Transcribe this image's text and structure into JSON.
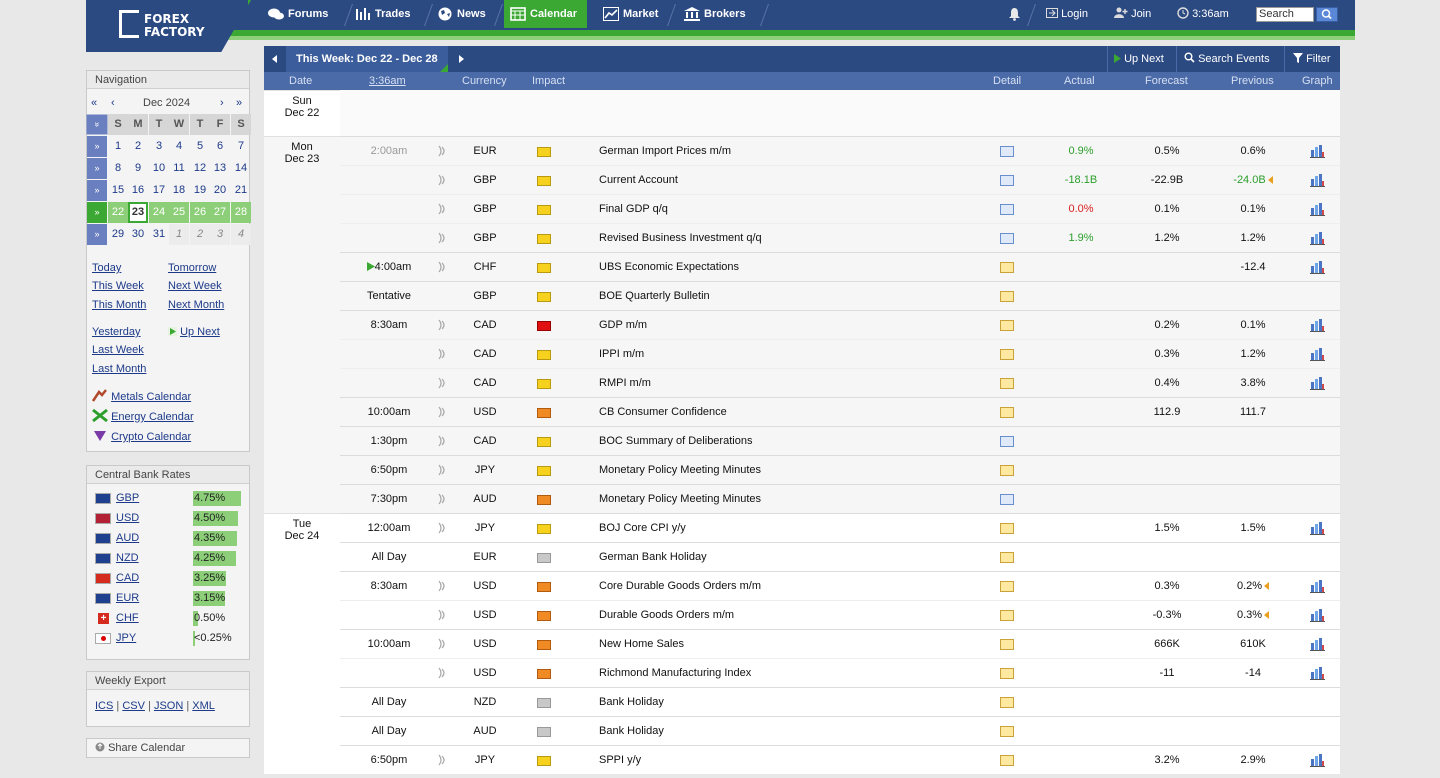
{
  "header": {
    "logo_line1": "FOREX",
    "logo_line2": "FACTORY",
    "tabs": [
      {
        "label": "Forums"
      },
      {
        "label": "Trades"
      },
      {
        "label": "News"
      },
      {
        "label": "Calendar",
        "active": true
      },
      {
        "label": "Market"
      },
      {
        "label": "Brokers"
      }
    ],
    "login": "Login",
    "join": "Join",
    "time": "3:36am",
    "search_placeholder": "Search"
  },
  "toolbar": {
    "week_label": "This Week: Dec 22 - Dec 28",
    "up_next": "Up Next",
    "search_events": "Search Events",
    "filter": "Filter"
  },
  "columns": {
    "date": "Date",
    "time": "3:36am",
    "currency": "Currency",
    "impact": "Impact",
    "detail": "Detail",
    "actual": "Actual",
    "forecast": "Forecast",
    "previous": "Previous",
    "graph": "Graph"
  },
  "sidebar": {
    "nav_title": "Navigation",
    "cal_nav": {
      "first": "«",
      "prev": "‹",
      "month": "Dec 2024",
      "next": "›",
      "last": "»"
    },
    "weekdays": [
      "S",
      "M",
      "T",
      "W",
      "T",
      "F",
      "S"
    ],
    "weeks": [
      [
        "1",
        "2",
        "3",
        "4",
        "5",
        "6",
        "7"
      ],
      [
        "8",
        "9",
        "10",
        "11",
        "12",
        "13",
        "14"
      ],
      [
        "15",
        "16",
        "17",
        "18",
        "19",
        "20",
        "21"
      ],
      [
        "22",
        "23",
        "24",
        "25",
        "26",
        "27",
        "28"
      ],
      [
        "29",
        "30",
        "31",
        "1",
        "2",
        "3",
        "4"
      ]
    ],
    "links": {
      "today": "Today",
      "tomorrow": "Tomorrow",
      "this_week": "This Week",
      "next_week": "Next Week",
      "this_month": "This Month",
      "next_month": "Next Month",
      "yesterday": "Yesterday",
      "up_next": "Up Next",
      "last_week": "Last Week",
      "last_month": "Last Month",
      "metals": "Metals Calendar",
      "energy": "Energy Calendar",
      "crypto": "Crypto Calendar"
    },
    "cbr_title": "Central Bank Rates",
    "rates": [
      {
        "code": "GBP",
        "rate": "4.75%",
        "level": 0.475
      },
      {
        "code": "USD",
        "rate": "4.50%",
        "level": 0.45
      },
      {
        "code": "AUD",
        "rate": "4.35%",
        "level": 0.435
      },
      {
        "code": "NZD",
        "rate": "4.25%",
        "level": 0.425
      },
      {
        "code": "CAD",
        "rate": "3.25%",
        "level": 0.325
      },
      {
        "code": "EUR",
        "rate": "3.15%",
        "level": 0.315
      },
      {
        "code": "CHF",
        "rate": "0.50%",
        "level": 0.05
      },
      {
        "code": "JPY",
        "rate": "<0.25%",
        "level": 0.02
      }
    ],
    "export_title": "Weekly Export",
    "exports": [
      "ICS",
      "CSV",
      "JSON",
      "XML"
    ],
    "share": "Share Calendar"
  },
  "days": [
    {
      "day": "Sun",
      "date": "Dec 22"
    },
    {
      "day": "Mon",
      "date": "Dec 23"
    },
    {
      "day": "Tue",
      "date": "Dec 24"
    }
  ],
  "events": [
    {
      "time": "2:00am",
      "cur": "EUR",
      "impact": "yellow",
      "event": "German Import Prices m/m",
      "actual": "0.9%",
      "actual_class": "pos",
      "forecast": "0.5%",
      "previous": "0.6%",
      "graph": true
    },
    {
      "time": "",
      "cur": "GBP",
      "impact": "yellow",
      "event": "Current Account",
      "actual": "-18.1B",
      "actual_class": "pos",
      "forecast": "-22.9B",
      "previous": "-24.0B",
      "previous_class": "pos",
      "prev_rev": true,
      "graph": true
    },
    {
      "time": "",
      "cur": "GBP",
      "impact": "yellow",
      "event": "Final GDP q/q",
      "actual": "0.0%",
      "actual_class": "neg",
      "forecast": "0.1%",
      "previous": "0.1%",
      "graph": true
    },
    {
      "time": "",
      "cur": "GBP",
      "impact": "yellow",
      "event": "Revised Business Investment q/q",
      "actual": "1.9%",
      "actual_class": "pos",
      "forecast": "1.2%",
      "previous": "1.2%",
      "graph": true
    },
    {
      "time": "4:00am",
      "cur": "CHF",
      "impact": "yellow",
      "event": "UBS Economic Expectations",
      "actual": "",
      "forecast": "",
      "previous": "-12.4",
      "graph": true,
      "next": true
    },
    {
      "time": "Tentative",
      "cur": "GBP",
      "impact": "yellow",
      "event": "BOE Quarterly Bulletin",
      "actual": "",
      "forecast": "",
      "previous": "",
      "graph": false
    },
    {
      "time": "8:30am",
      "cur": "CAD",
      "impact": "red",
      "event": "GDP m/m",
      "actual": "",
      "forecast": "0.2%",
      "previous": "0.1%",
      "graph": true
    },
    {
      "time": "",
      "cur": "CAD",
      "impact": "yellow",
      "event": "IPPI m/m",
      "actual": "",
      "forecast": "0.3%",
      "previous": "1.2%",
      "graph": true
    },
    {
      "time": "",
      "cur": "CAD",
      "impact": "yellow",
      "event": "RMPI m/m",
      "actual": "",
      "forecast": "0.4%",
      "previous": "3.8%",
      "graph": true
    },
    {
      "time": "10:00am",
      "cur": "USD",
      "impact": "orange",
      "event": "CB Consumer Confidence",
      "actual": "",
      "forecast": "112.9",
      "previous": "111.7",
      "graph": false
    },
    {
      "time": "1:30pm",
      "cur": "CAD",
      "impact": "yellow",
      "event": "BOC Summary of Deliberations",
      "actual": "",
      "forecast": "",
      "previous": "",
      "graph": false
    },
    {
      "time": "6:50pm",
      "cur": "JPY",
      "impact": "yellow",
      "event": "Monetary Policy Meeting Minutes",
      "actual": "",
      "forecast": "",
      "previous": "",
      "graph": false
    },
    {
      "time": "7:30pm",
      "cur": "AUD",
      "impact": "orange",
      "event": "Monetary Policy Meeting Minutes",
      "actual": "",
      "forecast": "",
      "previous": "",
      "graph": false
    },
    {
      "time": "12:00am",
      "cur": "JPY",
      "impact": "yellow",
      "event": "BOJ Core CPI y/y",
      "actual": "",
      "forecast": "1.5%",
      "previous": "1.5%",
      "graph": true
    },
    {
      "time": "All Day",
      "cur": "EUR",
      "impact": "gray",
      "event": "German Bank Holiday",
      "actual": "",
      "forecast": "",
      "previous": "",
      "graph": false
    },
    {
      "time": "8:30am",
      "cur": "USD",
      "impact": "orange",
      "event": "Core Durable Goods Orders m/m",
      "actual": "",
      "forecast": "0.3%",
      "previous": "0.2%",
      "prev_rev": true,
      "graph": true
    },
    {
      "time": "",
      "cur": "USD",
      "impact": "orange",
      "event": "Durable Goods Orders m/m",
      "actual": "",
      "forecast": "-0.3%",
      "previous": "0.3%",
      "prev_rev": true,
      "graph": true
    },
    {
      "time": "10:00am",
      "cur": "USD",
      "impact": "orange",
      "event": "New Home Sales",
      "actual": "",
      "forecast": "666K",
      "previous": "610K",
      "graph": true
    },
    {
      "time": "",
      "cur": "USD",
      "impact": "orange",
      "event": "Richmond Manufacturing Index",
      "actual": "",
      "forecast": "-11",
      "previous": "-14",
      "graph": true
    },
    {
      "time": "All Day",
      "cur": "NZD",
      "impact": "gray",
      "event": "Bank Holiday",
      "actual": "",
      "forecast": "",
      "previous": "",
      "graph": false
    },
    {
      "time": "All Day",
      "cur": "AUD",
      "impact": "gray",
      "event": "Bank Holiday",
      "actual": "",
      "forecast": "",
      "previous": "",
      "graph": false
    },
    {
      "time": "6:50pm",
      "cur": "JPY",
      "impact": "yellow",
      "event": "SPPI y/y",
      "actual": "",
      "forecast": "3.2%",
      "previous": "2.9%",
      "graph": true
    }
  ],
  "colors": {
    "header_blue": "#2c4a82",
    "green": "#3aa832",
    "impact_red": "#e01010",
    "impact_orange": "#f08a24",
    "impact_yellow": "#f6d21e",
    "impact_gray": "#c8c8c8"
  }
}
